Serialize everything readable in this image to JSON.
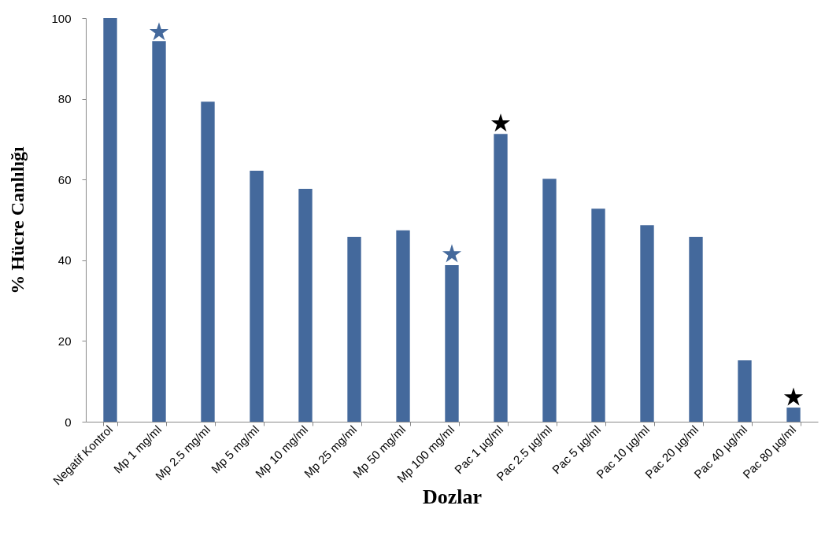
{
  "chart_data": {
    "type": "bar",
    "xlabel": "Dozlar",
    "ylabel": "% Hücre Canlılığı",
    "categories": [
      "Negatif Kontrol",
      "Mp 1 mg/ml",
      "Mp 2.5 mg/ml",
      "Mp 5 mg/ml",
      "Mp 10 mg/ml",
      "Mp 25 mg/ml",
      "Mp 50 mg/ml",
      "Mp 100 mg/ml",
      "Pac 1 µg/ml",
      "Pac 2.5 µg/ml",
      "Pac 5 µg/ml",
      "Pac 10 µg/ml",
      "Pac 20 µg/ml",
      "Pac 40 µg/ml",
      "Pac 80 µg/ml"
    ],
    "series": [
      {
        "color": "#44699c",
        "values": [
          100,
          94.3,
          79.3,
          62.2,
          57.7,
          45.8,
          47.4,
          38.8,
          71.3,
          60.2,
          52.8,
          48.7,
          45.8,
          15.2,
          3.5
        ]
      },
      {
        "type": "scatter",
        "marker": "star",
        "color": "#44699c",
        "x": [
          "Mp 1 mg/ml",
          "Mp 100 mg/ml"
        ],
        "values": [
          96.5,
          41.5
        ]
      },
      {
        "type": "scatter",
        "marker": "star",
        "color": "#000000",
        "x": [
          "Pac 1 µg/ml",
          "Pac 80 µg/ml"
        ],
        "values": [
          73.9,
          6.0
        ]
      }
    ],
    "ylim": [
      0,
      100
    ],
    "yticks": [
      0,
      20,
      40,
      60,
      80,
      100
    ]
  }
}
